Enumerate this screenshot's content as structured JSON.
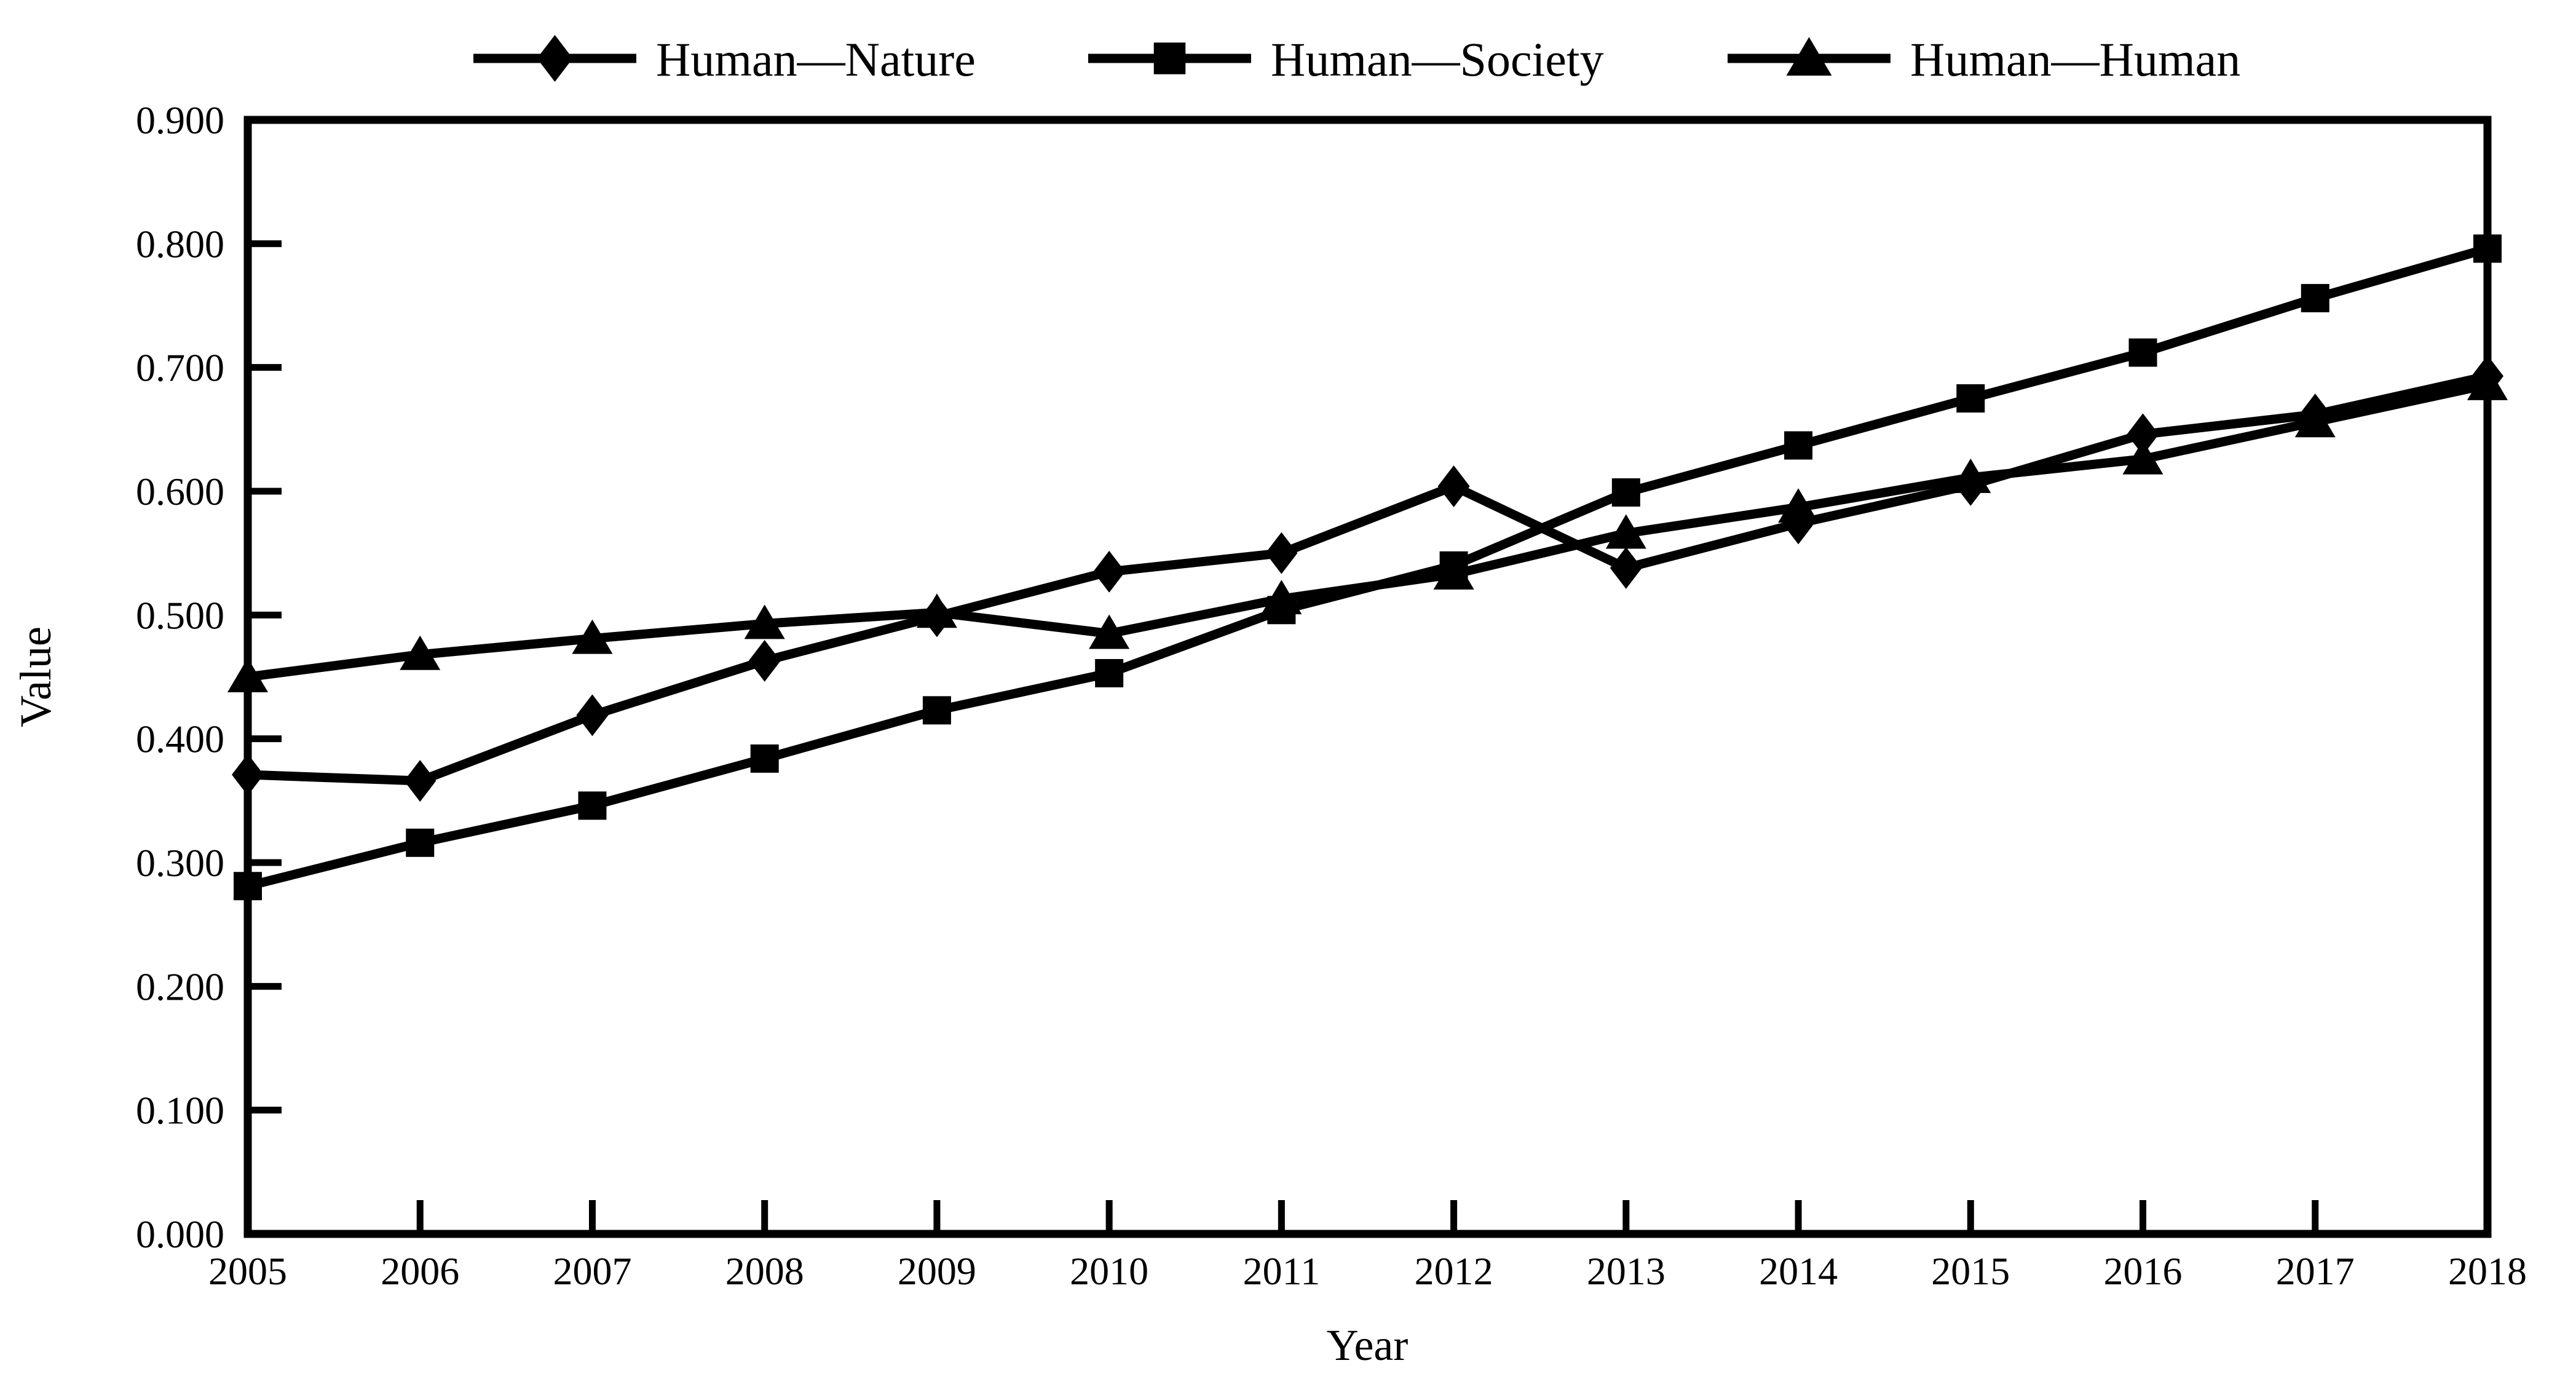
{
  "chart_data": {
    "type": "line",
    "title": "",
    "xlabel": "Year",
    "ylabel": "Value",
    "x": [
      2005,
      2006,
      2007,
      2008,
      2009,
      2010,
      2011,
      2012,
      2013,
      2014,
      2015,
      2016,
      2017,
      2018
    ],
    "ylim": [
      0.0,
      0.9
    ],
    "ytick_step": 0.1,
    "ytick_decimals": 3,
    "grid": false,
    "legend_position": "top",
    "line_color": "#000000",
    "background_color": "#ffffff",
    "series": [
      {
        "name": "Human—Nature",
        "marker": "diamond",
        "values": [
          0.371,
          0.366,
          0.419,
          0.463,
          0.499,
          0.535,
          0.55,
          0.604,
          0.538,
          0.574,
          0.605,
          0.646,
          0.662,
          0.693
        ]
      },
      {
        "name": "Human—Society",
        "marker": "square",
        "values": [
          0.281,
          0.316,
          0.346,
          0.384,
          0.423,
          0.453,
          0.504,
          0.54,
          0.599,
          0.637,
          0.675,
          0.712,
          0.756,
          0.796
        ]
      },
      {
        "name": "Human—Human",
        "marker": "triangle",
        "values": [
          0.45,
          0.468,
          0.481,
          0.493,
          0.502,
          0.485,
          0.513,
          0.533,
          0.566,
          0.587,
          0.611,
          0.626,
          0.656,
          0.686
        ]
      }
    ]
  }
}
